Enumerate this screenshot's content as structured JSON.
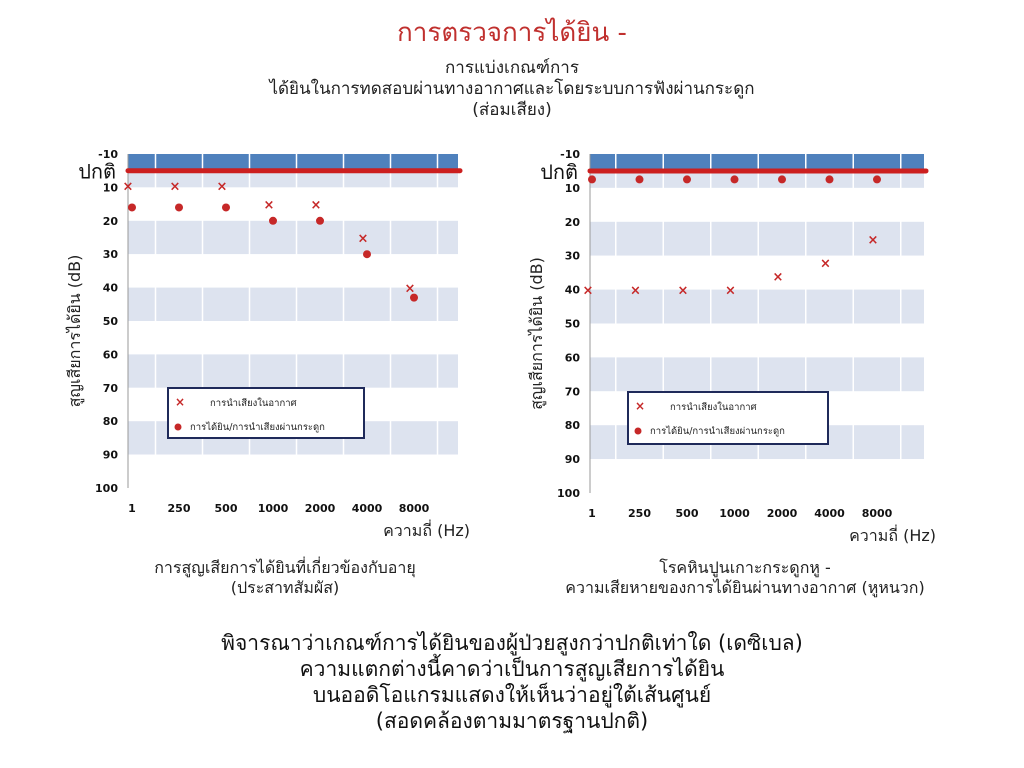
{
  "title": "การตรวจการได้ยิน -",
  "subtitle": [
    "การแบ่งเกณฑ์การ",
    "ได้ยินในการทดสอบผ่านทางอากาศและโดยระบบการฟังผ่านกระดูก",
    "(ส่อมเสียง)"
  ],
  "chart_data": [
    {
      "type": "scatter",
      "caption": [
        "การสูญเสียการได้ยินที่เกี่ยวข้องกับอายุ",
        "(ประสาทสัมผัส)"
      ],
      "ylabel": "สูญเสียการได้ยิน (dB)",
      "xlabel": "ความถี่ (Hz)",
      "categories": [
        "1",
        "250",
        "500",
        "1000",
        "2000",
        "4000",
        "8000"
      ],
      "y_ticks": [
        -10,
        10,
        20,
        30,
        40,
        50,
        60,
        70,
        80,
        90,
        100
      ],
      "ylim": [
        -10,
        100
      ],
      "normal_line": {
        "label": "ปกติ",
        "value": 0,
        "color": "#cc1f1f"
      },
      "legend": {
        "position": "lower-center"
      },
      "series": [
        {
          "name": "การนำเสียงในอากาศ",
          "marker": "x",
          "color": "#c62828",
          "points": [
            [
              0,
              9
            ],
            [
              1,
              9
            ],
            [
              2,
              9
            ],
            [
              3,
              15
            ],
            [
              4,
              15
            ],
            [
              5,
              25
            ],
            [
              6,
              40
            ]
          ]
        },
        {
          "name": "การได้ยิน/การนำเสียงผ่านกระดูก",
          "marker": "circle",
          "color": "#c62828",
          "points": [
            [
              0,
              16
            ],
            [
              1,
              16
            ],
            [
              2,
              16
            ],
            [
              3,
              20
            ],
            [
              4,
              20
            ],
            [
              5,
              30
            ],
            [
              6,
              43
            ]
          ]
        }
      ]
    },
    {
      "type": "scatter",
      "caption": [
        "โรคหินปูนเกาะกระดูกหู -",
        "ความเสียหายของการได้ยินผ่านทางอากาศ (หูหนวก)"
      ],
      "ylabel": "สูญเสียการได้ยิน (dB)",
      "xlabel": "ความถี่ (Hz)",
      "categories": [
        "1",
        "250",
        "500",
        "1000",
        "2000",
        "4000",
        "8000"
      ],
      "y_ticks": [
        -10,
        10,
        20,
        30,
        40,
        50,
        60,
        70,
        80,
        90,
        100
      ],
      "ylim": [
        -10,
        100
      ],
      "normal_line": {
        "label": "ปกติ",
        "value": 0,
        "color": "#cc1f1f"
      },
      "legend": {
        "position": "lower-center"
      },
      "series": [
        {
          "name": "การนำเสียงในอากาศ",
          "marker": "x",
          "color": "#c62828",
          "points": [
            [
              0,
              40
            ],
            [
              1,
              40
            ],
            [
              2,
              40
            ],
            [
              3,
              40
            ],
            [
              4,
              36
            ],
            [
              5,
              32
            ],
            [
              6,
              25
            ]
          ]
        },
        {
          "name": "การได้ยิน/การนำเสียงผ่านกระดูก",
          "marker": "circle",
          "color": "#c62828",
          "points": [
            [
              0,
              5
            ],
            [
              1,
              5
            ],
            [
              2,
              5
            ],
            [
              3,
              5
            ],
            [
              4,
              5
            ],
            [
              5,
              5
            ],
            [
              6,
              5
            ]
          ]
        }
      ]
    }
  ],
  "bottom_text": [
    "พิจารณาว่าเกณฑ์การได้ยินของผู้ป่วยสูงกว่าปกติเท่าใด (เดซิเบล)",
    "ความแตกต่างนี้คาดว่าเป็นการสูญเสียการได้ยิน",
    "บนออดิโอแกรมแสดงให้เห็นว่าอยู่ใต้เส้นศูนย์",
    "(สอดคล้องตามมาตรฐานปกติ)"
  ]
}
